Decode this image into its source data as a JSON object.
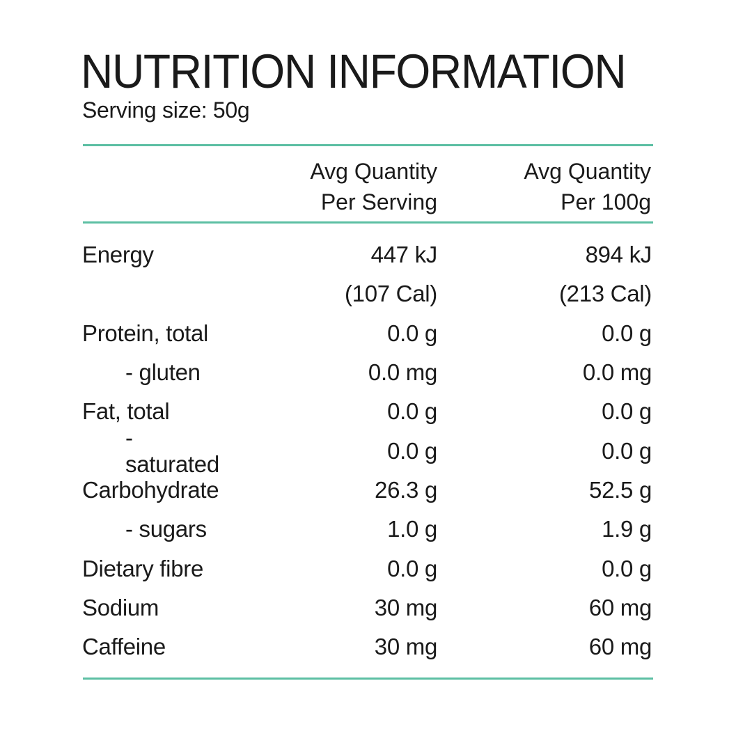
{
  "title": "NUTRITION INFORMATION",
  "serving_size": "Serving size: 50g",
  "colors": {
    "rule": "#5cbfa3",
    "text": "#1a1a1a"
  },
  "columns": [
    {
      "line1": "Avg Quantity",
      "line2": "Per Serving"
    },
    {
      "line1": "Avg Quantity",
      "line2": "Per 100g"
    }
  ],
  "rows": [
    {
      "label": "Energy",
      "sub": false,
      "per_serving": "447 kJ",
      "per_100g": "894 kJ"
    },
    {
      "label": "",
      "sub": false,
      "per_serving": "(107 Cal)",
      "per_100g": "(213 Cal)"
    },
    {
      "label": "Protein, total",
      "sub": false,
      "per_serving": "0.0 g",
      "per_100g": "0.0 g"
    },
    {
      "label": "- gluten",
      "sub": true,
      "per_serving": "0.0 mg",
      "per_100g": "0.0 mg"
    },
    {
      "label": "Fat, total",
      "sub": false,
      "per_serving": "0.0 g",
      "per_100g": "0.0 g"
    },
    {
      "label": "- saturated",
      "sub": true,
      "per_serving": "0.0 g",
      "per_100g": "0.0 g"
    },
    {
      "label": "Carbohydrate",
      "sub": false,
      "per_serving": "26.3 g",
      "per_100g": "52.5 g"
    },
    {
      "label": "- sugars",
      "sub": true,
      "per_serving": "1.0 g",
      "per_100g": "1.9 g"
    },
    {
      "label": "Dietary fibre",
      "sub": false,
      "per_serving": "0.0 g",
      "per_100g": "0.0 g"
    },
    {
      "label": "Sodium",
      "sub": false,
      "per_serving": "30 mg",
      "per_100g": "60 mg"
    },
    {
      "label": "Caffeine",
      "sub": false,
      "per_serving": "30 mg",
      "per_100g": "60 mg"
    }
  ]
}
